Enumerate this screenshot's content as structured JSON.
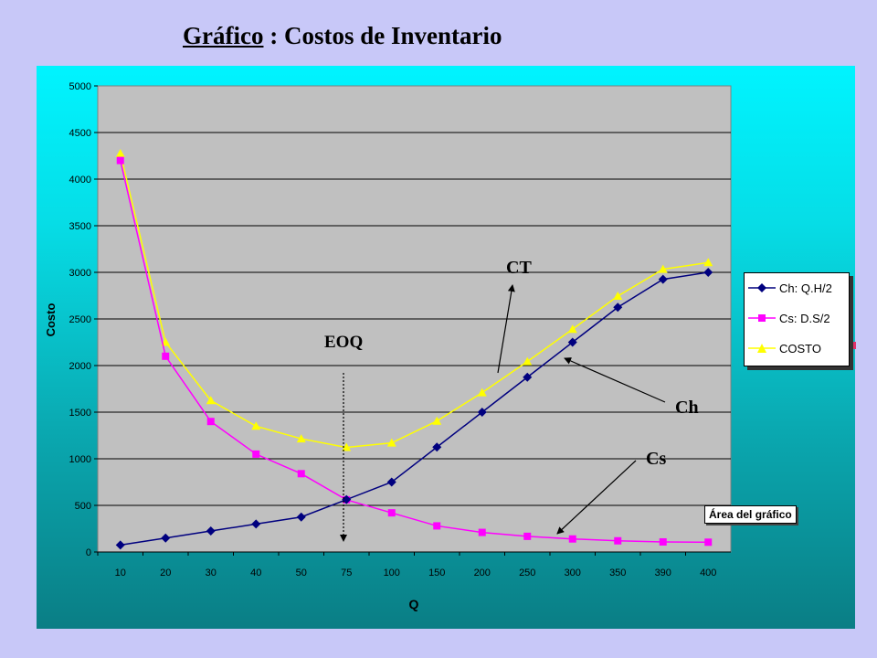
{
  "slide": {
    "title_underlined": "Gráfico",
    "title_rest": " : Costos de Inventario"
  },
  "tooltip_label": "Área del gráfico",
  "annotations": {
    "ct": "CT",
    "ch": "Ch",
    "cs": "Cs",
    "eoq": "EOQ"
  },
  "colors": {
    "ch": "#00007f",
    "cs": "#ff00ff",
    "costo": "#ffff00",
    "plot_bg": "#c0c0c0"
  },
  "chart_data": {
    "type": "line",
    "title": "",
    "xlabel": "Q",
    "ylabel": "Costo",
    "ylim": [
      0,
      5000
    ],
    "yticks": [
      "0",
      "500",
      "1000",
      "1500",
      "2000",
      "2500",
      "3000",
      "3500",
      "4000",
      "4500",
      "5000"
    ],
    "grid": true,
    "legend_position": "right",
    "categories": [
      "10",
      "20",
      "30",
      "40",
      "50",
      "75",
      "100",
      "150",
      "200",
      "250",
      "300",
      "350",
      "390",
      "400"
    ],
    "series": [
      {
        "name": "Ch: Q.H/2",
        "marker": "diamond",
        "color": "#00007f",
        "values": [
          75,
          150,
          225,
          300,
          375,
          562,
          750,
          1125,
          1500,
          1875,
          2250,
          2625,
          2925,
          3000
        ]
      },
      {
        "name": "Cs: D.S/2",
        "marker": "square",
        "color": "#ff00ff",
        "values": [
          4200,
          2100,
          1400,
          1050,
          840,
          560,
          420,
          280,
          210,
          168,
          140,
          120,
          108,
          105
        ]
      },
      {
        "name": "COSTO",
        "marker": "triangle",
        "color": "#ffff00",
        "values": [
          4275,
          2250,
          1625,
          1350,
          1215,
          1122,
          1170,
          1405,
          1710,
          2043,
          2390,
          2745,
          3033,
          3105
        ]
      }
    ]
  }
}
